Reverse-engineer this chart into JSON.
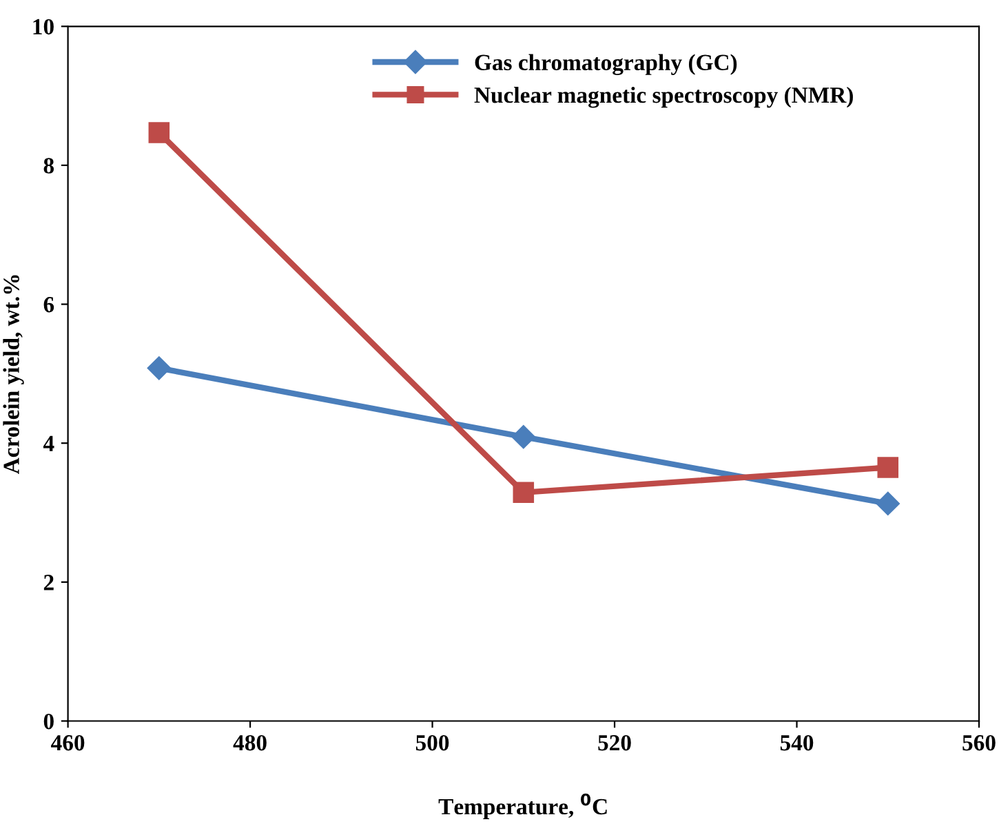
{
  "chart_data": {
    "type": "line",
    "xlabel": "Temperature, $^{0}$C",
    "ylabel": "Acrolein yield, wt.%",
    "x": [
      470,
      510,
      550
    ],
    "series": [
      {
        "name": "Gas chromatography (GC)",
        "color": "#4a7ebb",
        "values": [
          5.08,
          4.09,
          3.13
        ],
        "marker": "diamond"
      },
      {
        "name": "Nuclear magnetic spectroscopy (NMR)",
        "color": "#be4b48",
        "values": [
          8.47,
          3.29,
          3.65
        ],
        "marker": "square"
      }
    ],
    "xlim": [
      460,
      560
    ],
    "xticks": [
      460,
      480,
      500,
      520,
      540,
      560
    ],
    "ylim": [
      0,
      10
    ],
    "yticks": [
      0,
      2,
      4,
      6,
      8,
      10
    ],
    "grid": false,
    "legend": "top",
    "line_style": "solid"
  }
}
